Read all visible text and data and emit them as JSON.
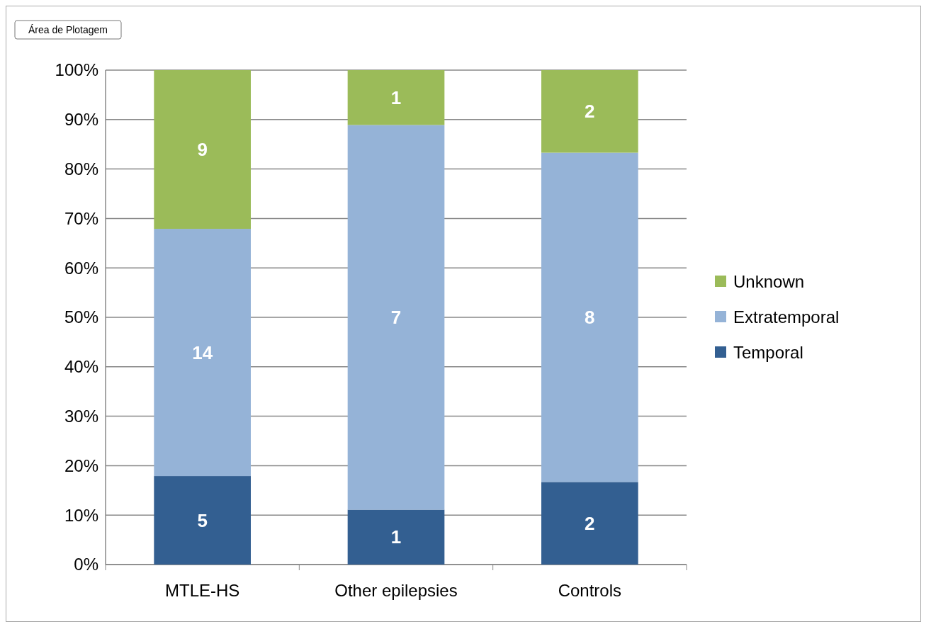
{
  "chart_data": {
    "type": "bar",
    "stacked": true,
    "categories": [
      "MTLE-HS",
      "Other epilepsies",
      "Controls"
    ],
    "series": [
      {
        "name": "Temporal",
        "color": "#335f91",
        "values": [
          17.9,
          11.1,
          16.7
        ]
      },
      {
        "name": "Extratemporal",
        "color": "#95b3d7",
        "values": [
          50,
          77.8,
          66.6
        ]
      },
      {
        "name": "Unknown",
        "color": "#9bbb59",
        "values": [
          32.1,
          11.1,
          16.7
        ]
      }
    ],
    "ylim": [
      0,
      100
    ],
    "yticks": [
      {
        "value": 0,
        "label": "0%"
      },
      {
        "value": 10,
        "label": "10%"
      },
      {
        "value": 20,
        "label": "20%"
      },
      {
        "value": 30,
        "label": "30%"
      },
      {
        "value": 40,
        "label": "40%"
      },
      {
        "value": 50,
        "label": "50%"
      },
      {
        "value": 60,
        "label": "60%"
      },
      {
        "value": 70,
        "label": "70%"
      },
      {
        "value": 80,
        "label": "80%"
      },
      {
        "value": 90,
        "label": "90%"
      },
      {
        "value": 100,
        "label": "100%"
      }
    ],
    "grid": "y",
    "legend": "right",
    "annotations": [
      "Área de Plotagem",
      "5",
      "14",
      "9",
      "1",
      "7",
      "1",
      "2",
      "8",
      "2"
    ]
  }
}
